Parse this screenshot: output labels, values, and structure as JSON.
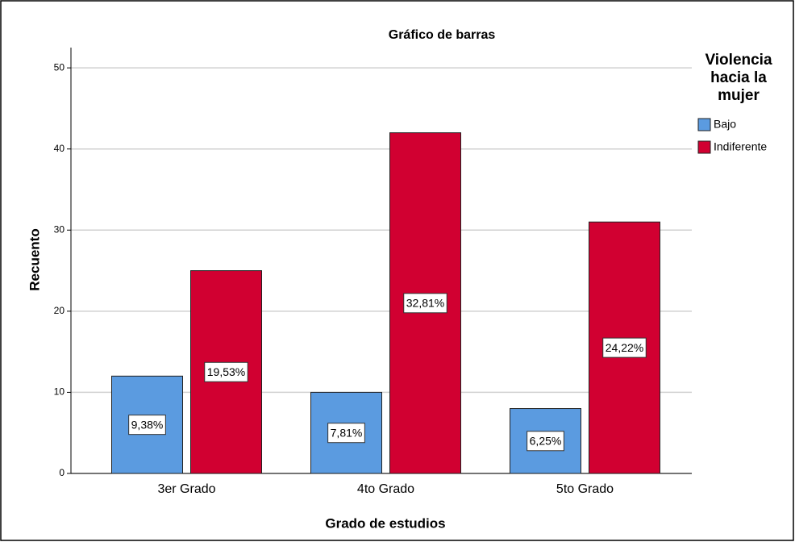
{
  "chart_data": {
    "type": "bar",
    "title": "Gráfico de barras",
    "x_label": "Grado de estudios",
    "y_label": "Recuento",
    "legend_title": "Violencia hacia la mujer",
    "legend": "right",
    "categories": [
      "3er Grado",
      "4to Grado",
      "5to Grado"
    ],
    "series": [
      {
        "name": "Bajo",
        "color": "#5b9be0",
        "values": [
          12,
          10,
          8
        ],
        "data_labels": [
          "9,38%",
          "7,81%",
          "6,25%"
        ]
      },
      {
        "name": "Indiferente",
        "color": "#d10031",
        "values": [
          25,
          42,
          31
        ],
        "data_labels": [
          "19,53%",
          "32,81%",
          "24,22%"
        ]
      }
    ],
    "ylim": [
      0,
      52.5
    ],
    "yticks": [
      0,
      10,
      20,
      30,
      40,
      50
    ],
    "grid": true
  }
}
